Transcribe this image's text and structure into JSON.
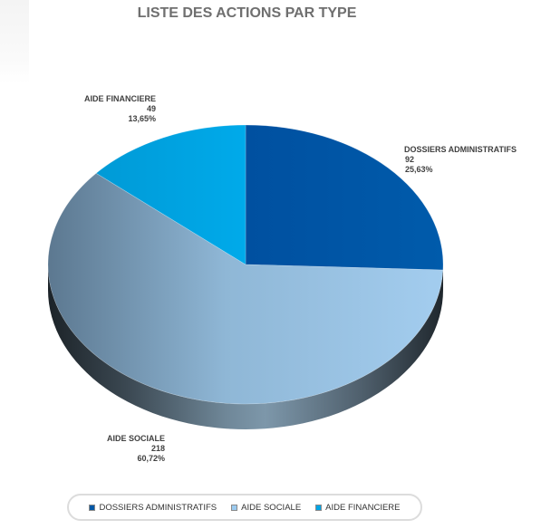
{
  "chart_data": {
    "type": "pie",
    "title": "LISTE DES ACTIONS PAR TYPE",
    "slices": [
      {
        "label": "DOSSIERS ADMINISTRATIFS",
        "value": 92,
        "percent_label": "25,63%",
        "color": "#0057a6"
      },
      {
        "label": "AIDE SOCIALE",
        "value": 218,
        "percent_label": "60,72%",
        "color": "#9ccbf0"
      },
      {
        "label": "AIDE FINANCIERE",
        "value": 49,
        "percent_label": "13,65%",
        "color": "#00a4e4"
      }
    ],
    "legend": {
      "position": "bottom"
    }
  }
}
